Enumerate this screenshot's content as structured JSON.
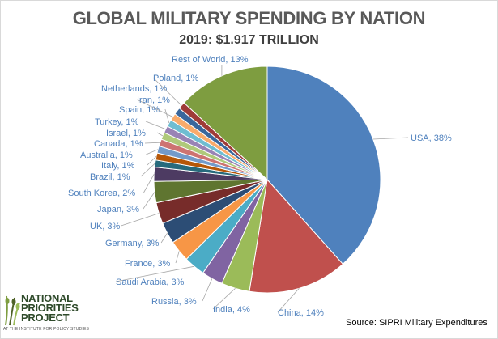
{
  "chart_data": {
    "type": "pie",
    "title": "GLOBAL MILITARY SPENDING BY NATION",
    "subtitle": "2019: $1.917 TRILLION",
    "slices": [
      {
        "label": "USA, 38%",
        "name": "USA",
        "value": 38,
        "color": "#4f81bd"
      },
      {
        "label": "China, 14%",
        "name": "China",
        "value": 14,
        "color": "#c0504d"
      },
      {
        "label": "India, 4%",
        "name": "India",
        "value": 4,
        "color": "#9bbb59"
      },
      {
        "label": "Russia, 3%",
        "name": "Russia",
        "value": 3,
        "color": "#8064a2"
      },
      {
        "label": "Saudi Arabia, 3%",
        "name": "Saudi Arabia",
        "value": 3,
        "color": "#4bacc6"
      },
      {
        "label": "France, 3%",
        "name": "France",
        "value": 3,
        "color": "#f79646"
      },
      {
        "label": "Germany, 3%",
        "name": "Germany",
        "value": 3,
        "color": "#2c4d75"
      },
      {
        "label": "UK, 3%",
        "name": "UK",
        "value": 3,
        "color": "#772c2a"
      },
      {
        "label": "Japan, 3%",
        "name": "Japan",
        "value": 3,
        "color": "#5f7530"
      },
      {
        "label": "South Korea, 2%",
        "name": "South Korea",
        "value": 2,
        "color": "#4d3b62"
      },
      {
        "label": "Brazil, 1%",
        "name": "Brazil",
        "value": 1,
        "color": "#276a7c"
      },
      {
        "label": "Italy, 1%",
        "name": "Italy",
        "value": 1,
        "color": "#b65708"
      },
      {
        "label": "Australia, 1%",
        "name": "Australia",
        "value": 1,
        "color": "#729aca"
      },
      {
        "label": "Canada, 1%",
        "name": "Canada",
        "value": 1,
        "color": "#cd7371"
      },
      {
        "label": "Israel, 1%",
        "name": "Israel",
        "value": 1,
        "color": "#afc97a"
      },
      {
        "label": "Turkey, 1%",
        "name": "Turkey",
        "value": 1,
        "color": "#9983b5"
      },
      {
        "label": "Spain, 1%",
        "name": "Spain",
        "value": 1,
        "color": "#6fbdd1"
      },
      {
        "label": "Iran, 1%",
        "name": "Iran",
        "value": 1,
        "color": "#f9ab6b"
      },
      {
        "label": "Netherlands, 1%",
        "name": "Netherlands",
        "value": 1,
        "color": "#3a679c"
      },
      {
        "label": "Poland, 1%",
        "name": "Poland",
        "value": 1,
        "color": "#9f3b38"
      },
      {
        "label": "Rest of World, 13%",
        "name": "Rest of World",
        "value": 13,
        "color": "#7e9d40"
      }
    ],
    "label_color": "#4f81bd",
    "leader_color": "#a6a6a6"
  },
  "logo": {
    "line1": "NATIONAL",
    "line2": "PRIORITIES",
    "line3": "PROJECT",
    "tagline": "AT THE INSTITUTE FOR POLICY STUDIES"
  },
  "source": "Source: SIPRI Military Expenditures"
}
